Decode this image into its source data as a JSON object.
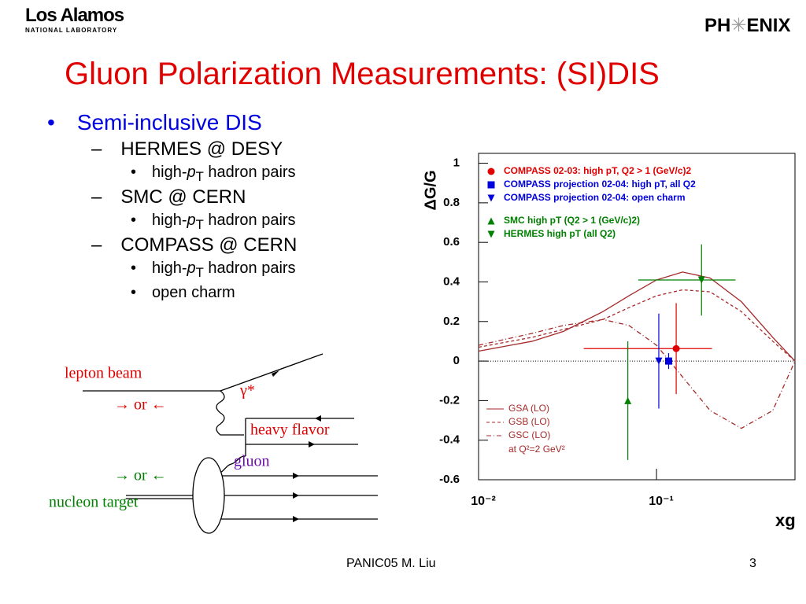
{
  "header": {
    "lab_name": "Los Alamos",
    "lab_sub": "NATIONAL LABORATORY",
    "logo_left": "PH",
    "logo_right": "ENIX"
  },
  "title": "Gluon Polarization Measurements: (SI)DIS",
  "bullets": {
    "main": "Semi-inclusive DIS",
    "items": [
      {
        "text": "HERMES @ DESY",
        "sub": [
          [
            "high-",
            "p",
            "T",
            " hadron pairs"
          ]
        ]
      },
      {
        "text": "SMC @ CERN",
        "sub": [
          [
            "high-",
            "p",
            "T",
            " hadron pairs"
          ]
        ]
      },
      {
        "text": "COMPASS @ CERN",
        "sub": [
          [
            "high-",
            "p",
            "T",
            " hadron pairs"
          ],
          [
            "open charm"
          ]
        ]
      }
    ]
  },
  "diagram": {
    "lepton_beam": "lepton beam",
    "arrows_top": "→ or ←",
    "photon": "γ*",
    "heavy_flavor": "heavy flavor",
    "gluon": "gluon",
    "arrows_bottom": "→ or ←",
    "nucleon_target": "nucleon target"
  },
  "chart_data": {
    "type": "scatter",
    "y_label": "ΔG/G",
    "x_label": "xg",
    "xlog": true,
    "xlim": [
      0.01,
      0.6
    ],
    "ylim": [
      -0.6,
      1.05
    ],
    "xticks": [
      {
        "value": 0.01,
        "label": "10⁻²"
      },
      {
        "value": 0.1,
        "label": "10⁻¹"
      }
    ],
    "yticks": [
      -0.6,
      -0.4,
      -0.2,
      0,
      0.2,
      0.4,
      0.6,
      0.8,
      1
    ],
    "series": [
      {
        "name": "COMPASS 02-03: high pT, Q2 > 1 (GeV/c)2",
        "color": "#e00000",
        "marker": "circle",
        "x": [
          0.129
        ],
        "values": [
          0.063
        ],
        "yerr": [
          0.23
        ],
        "x_lo": [
          0.039
        ],
        "x_hi": [
          0.205
        ]
      },
      {
        "name": "COMPASS projection 02-04: high pT, all Q2",
        "color": "#0000dd",
        "marker": "square",
        "x": [
          0.117
        ],
        "values": [
          0
        ],
        "yerr": [
          0.04
        ]
      },
      {
        "name": "COMPASS projection 02-04: open charm",
        "color": "#0000dd",
        "marker": "down",
        "x": [
          0.103
        ],
        "values": [
          0
        ],
        "yerr": [
          0.24
        ]
      },
      {
        "name": "SMC high pT (Q2 > 1 (GeV/c)2)",
        "color": "#008000",
        "marker": "up",
        "x": [
          0.069
        ],
        "values": [
          -0.2
        ],
        "yerr": [
          0.3
        ]
      },
      {
        "name": "HERMES high pT (all Q2)",
        "color": "#008000",
        "marker": "down",
        "x": [
          0.179
        ],
        "values": [
          0.41
        ],
        "yerr": [
          0.18
        ],
        "x_lo": [
          0.079
        ],
        "x_hi": [
          0.278
        ]
      }
    ],
    "curve_x": [
      0.01,
      0.02,
      0.03,
      0.05,
      0.07,
      0.1,
      0.14,
      0.2,
      0.3,
      0.45,
      0.6
    ],
    "curves": [
      {
        "name": "GSA (LO)",
        "color": "#a52a2a",
        "dash": "solid",
        "values": [
          0.05,
          0.1,
          0.15,
          0.25,
          0.33,
          0.41,
          0.45,
          0.42,
          0.3,
          0.12,
          0
        ]
      },
      {
        "name": "GSB (LO)",
        "color": "#a52a2a",
        "dash": "dashed",
        "values": [
          0.07,
          0.12,
          0.16,
          0.21,
          0.27,
          0.33,
          0.36,
          0.35,
          0.25,
          0.1,
          0
        ]
      },
      {
        "name": "GSC (LO)",
        "color": "#a52a2a",
        "dash": "dashdot",
        "values": [
          0.08,
          0.14,
          0.18,
          0.21,
          0.18,
          0.08,
          -0.08,
          -0.25,
          -0.34,
          -0.25,
          0
        ]
      }
    ],
    "curve_note": "at Q²=2 GeV²"
  },
  "footer": {
    "text": "PANIC05  M. Liu",
    "page": "3"
  }
}
